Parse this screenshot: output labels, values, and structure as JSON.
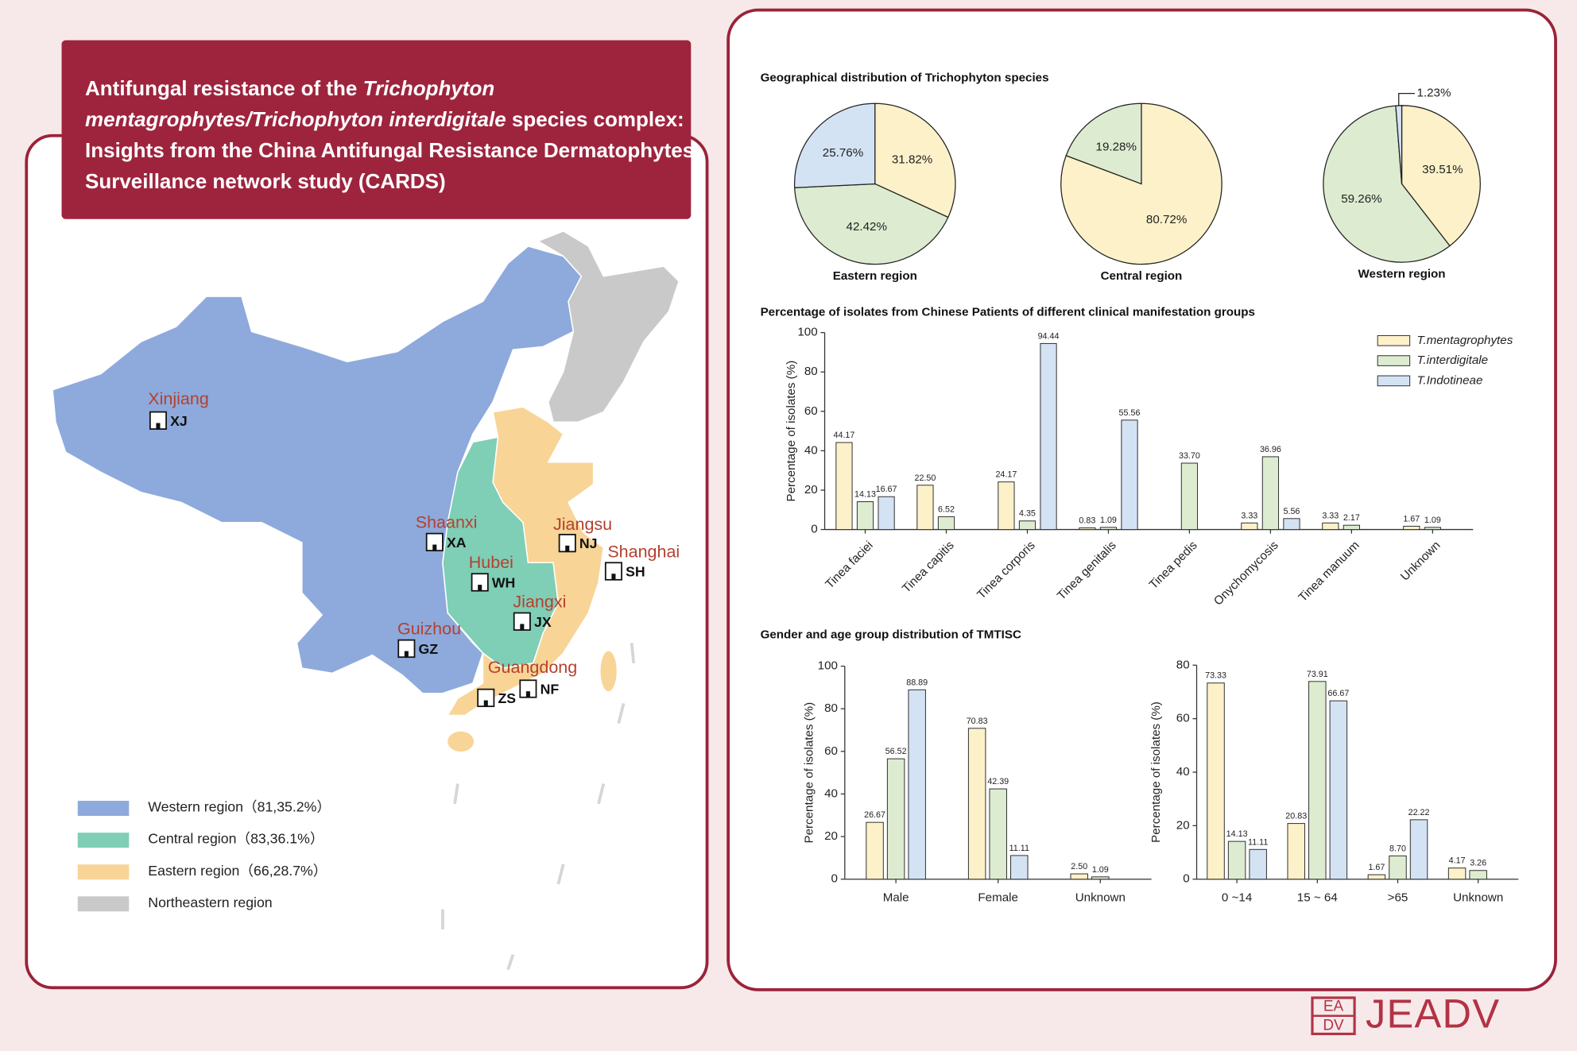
{
  "title": [
    "Antifungal resistance of the ",
    "Trichophyton mentagrophytes/Trichophyton interdigitale",
    " species complex: Insights from the China Antifungal Resistance Dermatophytes Surveillance network study (CARDS)"
  ],
  "map": {
    "sites": [
      {
        "region": "Xinjiang",
        "code": "XJ"
      },
      {
        "region": "Shaanxi",
        "code": "XA"
      },
      {
        "region": "Hubei",
        "code": "WH"
      },
      {
        "region": "Jiangsu",
        "code": "NJ"
      },
      {
        "region": "Shanghai",
        "code": "SH"
      },
      {
        "region": "Jiangxi",
        "code": "JX"
      },
      {
        "region": "Guizhou",
        "code": "GZ"
      },
      {
        "region": "Guangdong",
        "code": "NF"
      },
      {
        "code": "ZS"
      }
    ],
    "legend": [
      {
        "label": "Western region（81,35.2%）",
        "color": "#8eaadc"
      },
      {
        "label": "Central region（83,36.1%）",
        "color": "#7fceb6"
      },
      {
        "label": "Eastern region（66,28.7%）",
        "color": "#f8d496"
      },
      {
        "label": "Northeastern region",
        "color": "#c9c9c9"
      }
    ]
  },
  "panel_titles": [
    "Geographical distribution of Trichophyton species",
    "Percentage of isolates from Chinese Patients of different clinical manifestation groups",
    "Gender and age group distribution of TMTISC"
  ],
  "chart_data": [
    {
      "type": "pie",
      "title": "Eastern region",
      "values": [
        31.82,
        42.42,
        25.76
      ],
      "value_labels": [
        "31.82%",
        "42.42%",
        "25.76%"
      ],
      "colors": [
        "#fdf1c9",
        "#ddecd1",
        "#d3e3f4"
      ]
    },
    {
      "type": "pie",
      "title": "Central region",
      "values": [
        80.72,
        19.28
      ],
      "value_labels": [
        "80.72%",
        "19.28%"
      ],
      "colors": [
        "#fdf1c9",
        "#ddecd1"
      ]
    },
    {
      "type": "pie",
      "title": "Western region",
      "values": [
        39.51,
        59.26,
        1.23
      ],
      "value_labels": [
        "39.51%",
        "59.26%",
        "1.23%"
      ],
      "colors": [
        "#fdf1c9",
        "#ddecd1",
        "#d3e3f4"
      ]
    },
    {
      "type": "bar",
      "y_label": "Percentage of isolates (%)",
      "categories": [
        "Tinea faciei",
        "Tinea capitis",
        "Tinea corporis",
        "Tinea genitalis",
        "Tinea pedis",
        "Onychomycosis",
        "Tinea manuum",
        "Unknown"
      ],
      "ylim": [
        0,
        100
      ],
      "yticks": [
        0,
        20,
        40,
        60,
        80,
        100
      ],
      "series": [
        {
          "name": "T.mentagrophytes",
          "color": "#fdf1c9",
          "values": [
            44.17,
            22.5,
            24.17,
            0.83,
            null,
            3.33,
            3.33,
            1.67
          ],
          "value_labels": [
            "44.17",
            "22.50",
            "24.17",
            "0.83",
            null,
            "3.33",
            "3.33",
            "1.67"
          ]
        },
        {
          "name": "T.interdigitale",
          "color": "#ddecd1",
          "values": [
            14.13,
            6.52,
            4.35,
            1.09,
            33.7,
            36.96,
            2.17,
            1.09
          ],
          "value_labels": [
            "14.13",
            "6.52",
            "4.35",
            "1.09",
            "33.70",
            "36.96",
            "2.17",
            "1.09"
          ]
        },
        {
          "name": "T.Indotineae",
          "color": "#d3e3f4",
          "values": [
            16.67,
            null,
            94.44,
            55.56,
            null,
            5.56,
            null,
            null
          ],
          "value_labels": [
            "16.67",
            null,
            "94.44",
            "55.56",
            null,
            "5.56",
            null,
            null
          ]
        }
      ]
    },
    {
      "type": "bar",
      "y_label": "Percentage of isolates (%)",
      "categories": [
        "Male",
        "Female",
        "Unknown"
      ],
      "ylim": [
        0,
        100
      ],
      "yticks": [
        0,
        20,
        40,
        60,
        80,
        100
      ],
      "series": [
        {
          "color": "#fdf1c9",
          "values": [
            26.67,
            70.83,
            2.5
          ],
          "value_labels": [
            "26.67",
            "70.83",
            "2.50"
          ]
        },
        {
          "color": "#ddecd1",
          "values": [
            56.52,
            42.39,
            1.09
          ],
          "value_labels": [
            "56.52",
            "42.39",
            "1.09"
          ]
        },
        {
          "color": "#d3e3f4",
          "values": [
            88.89,
            11.11,
            null
          ],
          "value_labels": [
            "88.89",
            "11.11",
            null
          ]
        }
      ]
    },
    {
      "type": "bar",
      "y_label": "Percentage of isolates (%)",
      "categories": [
        "0 ~14",
        "15 ~ 64",
        ">65",
        "Unknown"
      ],
      "ylim": [
        0,
        80
      ],
      "yticks": [
        0,
        20,
        40,
        60,
        80
      ],
      "series": [
        {
          "color": "#fdf1c9",
          "values": [
            73.33,
            20.83,
            1.67,
            4.17
          ],
          "value_labels": [
            "73.33",
            "20.83",
            "1.67",
            "4.17"
          ]
        },
        {
          "color": "#ddecd1",
          "values": [
            14.13,
            73.91,
            8.7,
            3.26
          ],
          "value_labels": [
            "14.13",
            "73.91",
            "8.70",
            "3.26"
          ]
        },
        {
          "color": "#d3e3f4",
          "values": [
            11.11,
            66.67,
            22.22,
            null
          ],
          "value_labels": [
            "11.11",
            "66.67",
            "22.22",
            null
          ]
        }
      ]
    }
  ],
  "logo": {
    "mark_top": "EA",
    "mark_bottom": "DV",
    "name": "JEADV"
  }
}
